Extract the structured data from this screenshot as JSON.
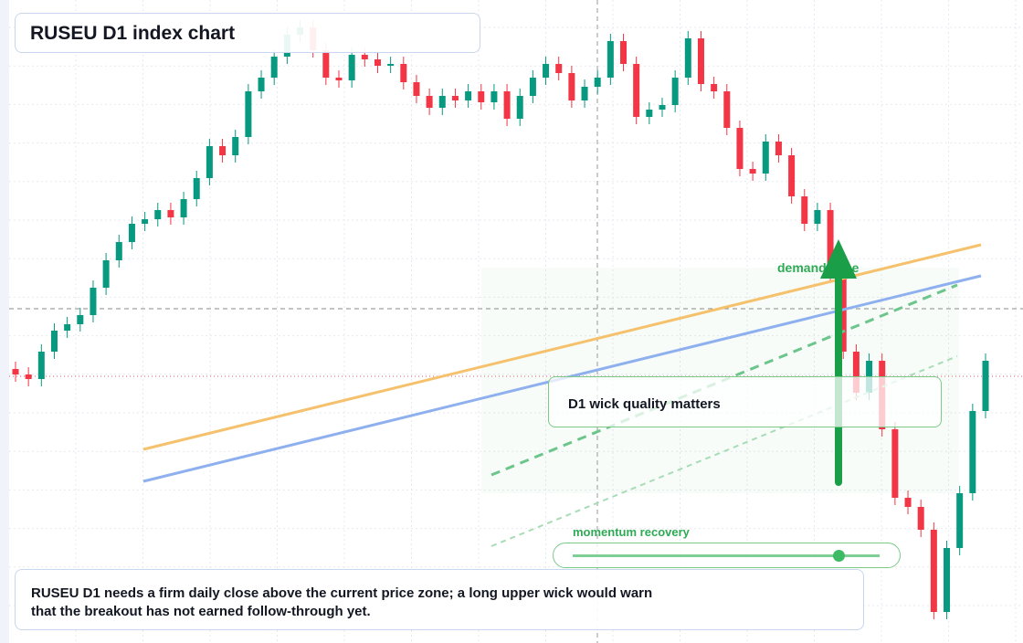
{
  "chart_data": {
    "type": "candlestick",
    "title": "RUSEU D1 index chart",
    "ylim": [
      0,
      176
    ],
    "open": [
      75,
      73.5,
      72.25,
      79.75,
      85.5,
      87.25,
      89.75,
      97.25,
      104.75,
      109.75,
      114.75,
      116,
      118.5,
      116.5,
      121.5,
      127.25,
      136,
      133.5,
      138.5,
      151,
      154.75,
      160.5,
      166.5,
      168.5,
      162.25,
      154.75,
      154,
      161,
      159.75,
      158,
      158.5,
      153.5,
      149.75,
      146.5,
      149.75,
      148.5,
      151,
      148,
      151,
      143.5,
      149.75,
      154.75,
      158.5,
      156,
      148.5,
      152.25,
      154.75,
      164.75,
      158.5,
      144,
      146,
      147.25,
      154.75,
      165.5,
      153,
      151,
      141,
      129.75,
      128.5,
      137.25,
      133.5,
      122.25,
      114.75,
      118.5,
      101,
      79.75,
      68.5,
      77.25,
      58.5,
      39.75,
      37.25,
      31,
      8.5,
      26,
      41,
      63.5
    ],
    "high": [
      77,
      75.5,
      81.75,
      87.5,
      89.25,
      91.75,
      99.25,
      106.75,
      111.75,
      116.75,
      118,
      120.5,
      120.5,
      123.5,
      129.25,
      138,
      138,
      140.5,
      153,
      156.75,
      162.5,
      168.5,
      170.5,
      170.5,
      164.25,
      156.75,
      163,
      163,
      161.75,
      160.5,
      160.5,
      155.5,
      151.75,
      151.75,
      151.75,
      153,
      153,
      153,
      153,
      151.75,
      156.75,
      160.5,
      160.5,
      158,
      154.25,
      156.75,
      166.75,
      166.75,
      160.5,
      148,
      149.25,
      156.75,
      167.5,
      167.5,
      155,
      153,
      143,
      131.75,
      139.25,
      139.25,
      135.5,
      124.25,
      120.5,
      120.5,
      103,
      81.75,
      79.25,
      79.25,
      60.5,
      41.75,
      39.25,
      33,
      28,
      43,
      65.5,
      79.25
    ],
    "low": [
      71.5,
      70.25,
      70.25,
      77.75,
      83.5,
      85.25,
      87.75,
      95.25,
      102.75,
      107.75,
      112.75,
      114,
      114.5,
      114.5,
      119.5,
      125.25,
      131.5,
      131.5,
      136.5,
      149,
      152.75,
      158.5,
      164.5,
      160.25,
      152.75,
      152,
      152,
      157.75,
      156,
      156,
      151.5,
      147.75,
      144.5,
      144.5,
      146.5,
      146.5,
      146,
      146,
      141.5,
      141.5,
      147.75,
      152.75,
      154,
      146.5,
      146.5,
      150.25,
      152.75,
      156.5,
      142,
      142,
      144,
      145.25,
      152.75,
      151,
      149,
      139,
      127.75,
      126.5,
      126.5,
      131.5,
      120.25,
      112.75,
      112.75,
      99,
      77.75,
      66.5,
      66.5,
      56.5,
      37.75,
      35.25,
      29,
      6.5,
      6.5,
      24,
      39,
      61.5
    ],
    "close": [
      73.5,
      72.25,
      79.75,
      85.5,
      87.25,
      89.75,
      97.25,
      104.75,
      109.75,
      114.75,
      116,
      118.5,
      116.5,
      121.5,
      127.25,
      136,
      133.5,
      138.5,
      151,
      154.75,
      160.5,
      166.5,
      168.5,
      162.25,
      154.75,
      154,
      161,
      159.75,
      158,
      158.5,
      153.5,
      149.75,
      146.5,
      149.75,
      148.5,
      151,
      148,
      151,
      143.5,
      149.75,
      154.75,
      158.5,
      156,
      148.5,
      152.25,
      154.75,
      164.75,
      158.5,
      144,
      146,
      147.25,
      154.75,
      165.5,
      153,
      151,
      141,
      129.75,
      128.5,
      137.25,
      133.5,
      122.25,
      114.75,
      118.5,
      101,
      79.75,
      68.5,
      77.25,
      58.5,
      39.75,
      37.25,
      31,
      8.5,
      26,
      41,
      63.5,
      77.25
    ],
    "up_color": "#089981",
    "down_color": "#f23645",
    "annotations": [
      "demand zone",
      "D1 wick quality matters",
      "momentum recovery"
    ],
    "caption": [
      "RUSEU D1 needs a firm daily close above the current price zone; a long upper wick would warn",
      "that the breakout has not earned follow-through yet."
    ]
  }
}
